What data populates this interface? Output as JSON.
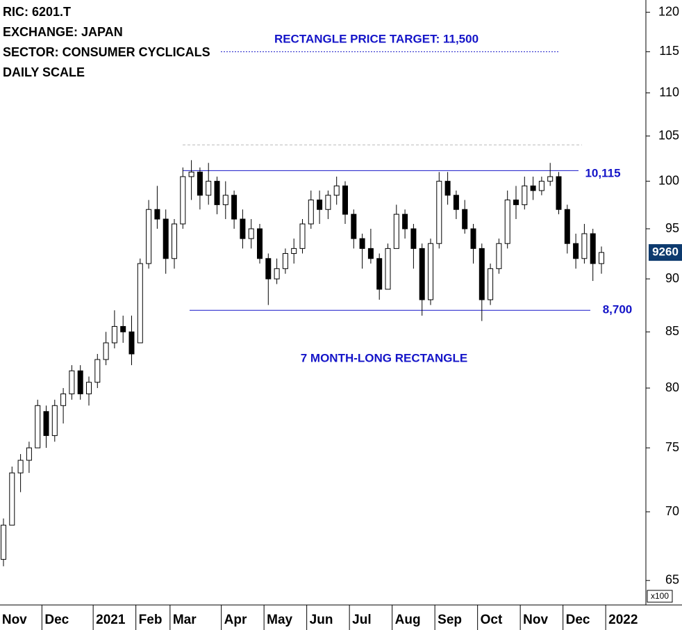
{
  "chart_data": {
    "type": "candlestick",
    "title": "RIC: 6201.T",
    "subtitle": [
      "EXCHANGE: JAPAN",
      "SECTOR: CONSUMER CYCLICALS",
      "DAILY SCALE"
    ],
    "annotations": [
      "7 MONTH-LONG RECTANGLE"
    ],
    "y_unit_label": "x100",
    "log_scale": true,
    "ylim": [
      63.4,
      121.6
    ],
    "yticks": [
      65,
      70,
      75,
      80,
      85,
      90,
      95,
      100,
      105,
      110,
      115,
      120
    ],
    "categories": [
      "Nov",
      null,
      null,
      null,
      null,
      "Dec",
      null,
      null,
      null,
      null,
      null,
      "2021",
      null,
      null,
      null,
      null,
      "Feb",
      null,
      null,
      null,
      "Mar",
      null,
      null,
      null,
      null,
      null,
      "Apr",
      null,
      null,
      null,
      null,
      "May",
      null,
      null,
      null,
      null,
      "Jun",
      null,
      null,
      null,
      null,
      "Jul",
      null,
      null,
      null,
      null,
      "Aug",
      null,
      null,
      null,
      null,
      "Sep",
      null,
      null,
      null,
      null,
      "Oct",
      null,
      null,
      null,
      null,
      "Nov",
      null,
      null,
      null,
      null,
      "Dec",
      null,
      null,
      null,
      null,
      "2022"
    ],
    "open": [
      66.5,
      69,
      73,
      74,
      75,
      78,
      76,
      78.5,
      79.5,
      81.5,
      79.5,
      80.5,
      82.5,
      84,
      85.5,
      85,
      84,
      91.5,
      97,
      96,
      92,
      95.5,
      100.5,
      101,
      98.5,
      100,
      97.5,
      98.5,
      96,
      94,
      95,
      92,
      90,
      91,
      92.5,
      93,
      95.5,
      98,
      97,
      98.5,
      99.5,
      96.5,
      94,
      93,
      92,
      89,
      93,
      96.5,
      95,
      93,
      88,
      93.5,
      100,
      98.5,
      97,
      95,
      93,
      88,
      91,
      93.5,
      98,
      97.5,
      99.5,
      99,
      100,
      100.5,
      97,
      93.5,
      92,
      94.5,
      91.5,
      null
    ],
    "high": [
      69.5,
      73.5,
      74.5,
      75.5,
      79,
      78.5,
      79,
      80,
      82,
      82,
      81,
      83,
      85,
      87,
      86.5,
      86.5,
      92,
      98,
      99.5,
      97,
      96,
      101.5,
      102.3,
      101.5,
      102,
      100.5,
      100,
      99,
      97,
      96,
      95.5,
      92.5,
      92,
      93,
      94,
      96,
      99,
      99,
      99,
      100.5,
      100,
      97,
      94.5,
      95,
      92.5,
      93.5,
      97.5,
      97,
      95.5,
      93.5,
      94,
      101,
      101,
      99,
      98,
      95.5,
      93.5,
      91.5,
      94,
      99,
      99.5,
      100.5,
      100.5,
      100.5,
      102,
      101,
      97.5,
      94.5,
      95.5,
      95,
      93.2,
      null
    ],
    "low": [
      66,
      69,
      71.5,
      73,
      75,
      75,
      75.5,
      77,
      79,
      79,
      78.5,
      80,
      82,
      83.5,
      84,
      82,
      84,
      91,
      95,
      90.5,
      91,
      95,
      98,
      97,
      97.5,
      96.5,
      96,
      95,
      93,
      93,
      91.5,
      87.5,
      89.5,
      90.5,
      91.5,
      92.5,
      95,
      95.5,
      96,
      97.5,
      95.5,
      93,
      91,
      91.5,
      88,
      89,
      93,
      94,
      91,
      86.5,
      87.5,
      93,
      97.5,
      96,
      94.5,
      91.5,
      86,
      87.5,
      90.5,
      93,
      96,
      97,
      98,
      98.5,
      99.5,
      96.5,
      92.5,
      91,
      91.5,
      89.8,
      90.5,
      null
    ],
    "close": [
      69,
      73,
      74,
      75,
      78.5,
      76,
      78.5,
      79.5,
      81.5,
      79.5,
      80.5,
      82.5,
      84,
      85.5,
      85,
      83,
      91.5,
      97,
      96,
      92,
      95.5,
      100.5,
      101,
      98.5,
      100,
      97.5,
      98.5,
      96,
      94,
      95,
      92,
      90,
      91,
      92.5,
      93,
      95.5,
      98,
      97,
      98.5,
      99.5,
      96.5,
      94,
      93,
      92,
      89,
      93,
      96.5,
      95,
      93,
      88,
      93.5,
      100,
      98.5,
      97,
      95,
      93,
      88,
      91,
      93.5,
      98,
      97.5,
      99.5,
      99,
      100,
      100.5,
      97,
      93.5,
      92,
      94.5,
      91.5,
      92.6,
      null
    ],
    "colors": {
      "up": "#ffffff",
      "down": "#000000",
      "outline": "#000000",
      "annotation": "#1414c8"
    },
    "lines": [
      {
        "value": 115,
        "label": "RECTANGLE PRICE TARGET: 11,500",
        "style": "dotted",
        "color": "#1414c8"
      },
      {
        "value": 104,
        "style": "dashed",
        "color": "#bbbbbb"
      },
      {
        "value": 101.15,
        "label": "10,115",
        "style": "solid",
        "color": "#1414c8"
      },
      {
        "value": 87,
        "label": "8,700",
        "style": "solid",
        "color": "#1414c8"
      }
    ],
    "last_price": {
      "value": 92.6,
      "label": "9260",
      "color": "#0d3a6e"
    }
  }
}
